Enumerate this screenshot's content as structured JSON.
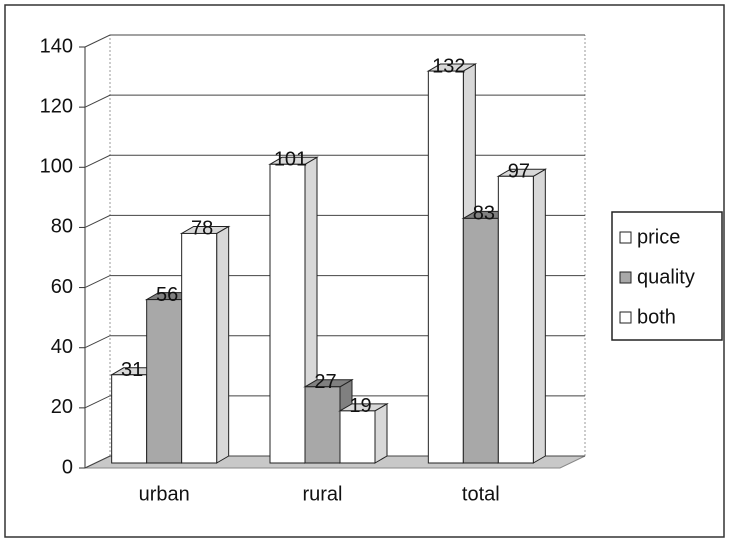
{
  "chart_data": {
    "type": "bar3d",
    "categories": [
      "urban",
      "rural",
      "total"
    ],
    "series": [
      {
        "name": "price",
        "color": "#ffffff",
        "values": [
          31,
          101,
          132
        ]
      },
      {
        "name": "quality",
        "color": "#a8a8a8",
        "values": [
          56,
          27,
          83
        ]
      },
      {
        "name": "both",
        "color": "#ffffff",
        "values": [
          78,
          19,
          97
        ]
      }
    ],
    "ylim": [
      0,
      140
    ],
    "yticks": [
      0,
      20,
      40,
      60,
      80,
      100,
      120,
      140
    ],
    "grid": true,
    "legend": "right"
  }
}
